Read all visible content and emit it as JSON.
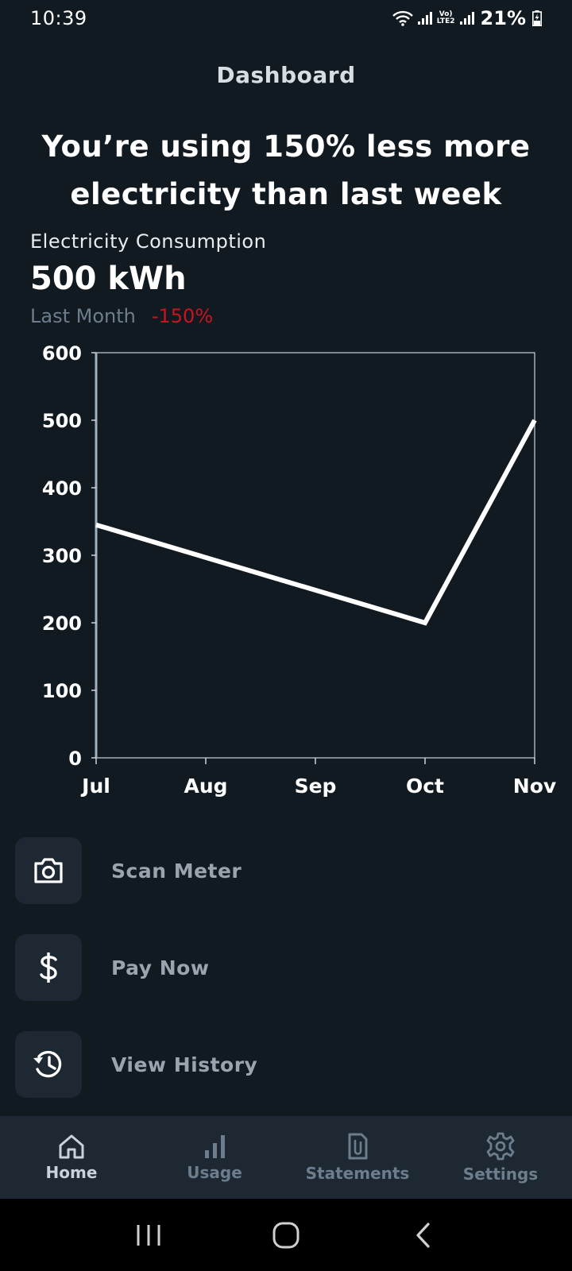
{
  "status_bar": {
    "time": "10:39",
    "battery": "21%",
    "network": "LTE2"
  },
  "header": {
    "title": "Dashboard"
  },
  "headline": "You’re using 150% less more electricity than last week",
  "metric": {
    "label": "Electricity Consumption",
    "value": "500 kWh",
    "period": "Last Month",
    "change": "-150%"
  },
  "chart_data": {
    "type": "line",
    "categories": [
      "Jul",
      "Aug",
      "Sep",
      "Oct",
      "Nov"
    ],
    "series": [
      {
        "x": [
          "Jul",
          "Oct",
          "Nov"
        ],
        "values": [
          345,
          200,
          500
        ]
      }
    ],
    "yticks": [
      0,
      100,
      200,
      300,
      400,
      500,
      600
    ],
    "ylim": [
      0,
      600
    ],
    "grid": false,
    "line_color": "#ffffff"
  },
  "actions": [
    {
      "label": "Scan Meter",
      "icon": "camera-icon"
    },
    {
      "label": "Pay Now",
      "icon": "dollar-icon"
    },
    {
      "label": "View History",
      "icon": "history-icon"
    }
  ],
  "bottom_nav": [
    {
      "label": "Home",
      "icon": "home-icon",
      "active": true
    },
    {
      "label": "Usage",
      "icon": "bar-chart-icon",
      "active": false
    },
    {
      "label": "Statements",
      "icon": "document-clip-icon",
      "active": false
    },
    {
      "label": "Settings",
      "icon": "gear-icon",
      "active": false
    }
  ],
  "colors": {
    "background": "#121a21",
    "card": "#1d2833",
    "muted": "#6c7d8d",
    "negative": "#c8141f"
  }
}
